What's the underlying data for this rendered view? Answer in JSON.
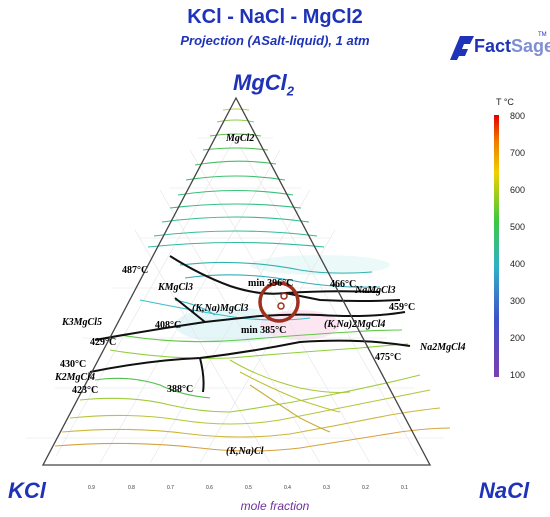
{
  "header": {
    "title": "KCl - NaCl - MgCl2",
    "subtitle": "Projection (ASalt-liquid),  1 atm"
  },
  "logo": {
    "text_a": "Fact",
    "text_b": "Sage",
    "tm": "TM"
  },
  "corners": {
    "top": "MgCl2",
    "left": "KCl",
    "right": "NaCl"
  },
  "axis": {
    "label": "mole fraction",
    "ticks": [
      "0.9",
      "0.8",
      "0.7",
      "0.6",
      "0.5",
      "0.4",
      "0.3",
      "0.2",
      "0.1"
    ]
  },
  "colorbar": {
    "title": "T °C",
    "ticks": [
      "800",
      "700",
      "600",
      "500",
      "400",
      "300",
      "200",
      "100"
    ],
    "colors": [
      "#e00000",
      "#f07a00",
      "#f0d000",
      "#3fc840",
      "#30b0c8",
      "#3f52c8",
      "#7b3fb0"
    ]
  },
  "phases": {
    "mgcl2": "MgCl2",
    "kmgcl3": "KMgCl3",
    "namgcl3": "NaMgCl3",
    "knamgcl3": "(K,Na)MgCl3",
    "k3mgcl5": "K3MgCl5",
    "k2mgcl4": "K2MgCl4",
    "kna2mgcl4": "(K,Na)2MgCl4",
    "na2mgcl4": "Na2MgCl4",
    "knacl": "(K,Na)Cl"
  },
  "temperatures": {
    "t487": "487°C",
    "t466": "466°C",
    "t459": "459°C",
    "t408": "408°C",
    "t429": "429°C",
    "t430": "430°C",
    "t423": "423°C",
    "t388": "388°C",
    "t475": "475°C",
    "min396": "min 396°C",
    "min385": "min 385°C"
  }
}
